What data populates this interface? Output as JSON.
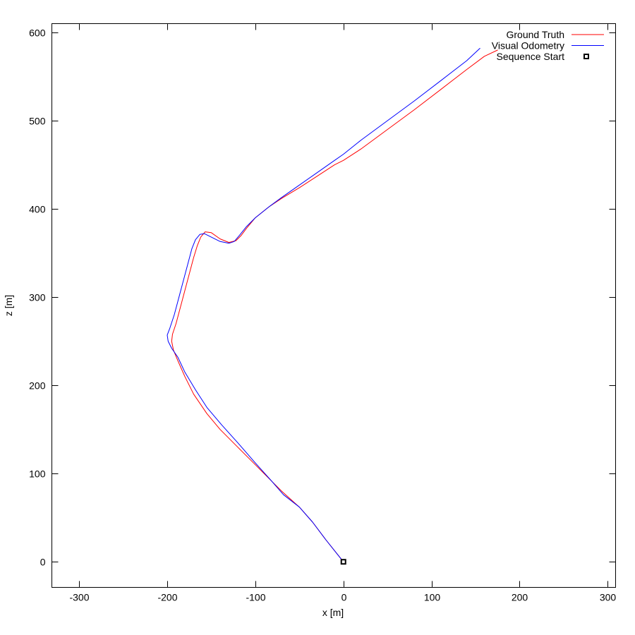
{
  "chart_data": {
    "type": "line",
    "title": "",
    "xlabel": "x [m]",
    "ylabel": "z [m]",
    "xlim": [
      -331,
      309
    ],
    "ylim": [
      -29,
      610
    ],
    "xticks": [
      -300,
      -200,
      -100,
      0,
      100,
      200,
      300
    ],
    "yticks": [
      0,
      100,
      200,
      300,
      400,
      500,
      600
    ],
    "grid": false,
    "legend": "top-right",
    "series": [
      {
        "name": "Ground Truth",
        "color": "#ff0000",
        "x": [
          0,
          -8,
          -20,
          -35,
          -50,
          -70,
          -85,
          -100,
          -120,
          -140,
          -155,
          -170,
          -180,
          -188,
          -193,
          -195,
          -194,
          -190,
          -186,
          -182,
          -178,
          -174,
          -170,
          -166,
          -162,
          -157,
          -150,
          -140,
          -130,
          -122,
          -116,
          -110,
          -100,
          -85,
          -70,
          -50,
          -30,
          -10,
          0,
          20,
          50,
          80,
          110,
          140,
          160,
          175
        ],
        "y": [
          0,
          10,
          25,
          45,
          62,
          80,
          95,
          110,
          130,
          150,
          168,
          190,
          210,
          228,
          240,
          250,
          258,
          270,
          285,
          300,
          315,
          330,
          345,
          358,
          368,
          374,
          373,
          366,
          362,
          364,
          370,
          378,
          390,
          402,
          412,
          424,
          437,
          450,
          455,
          468,
          490,
          512,
          535,
          558,
          573,
          580
        ]
      },
      {
        "name": "Visual Odometry",
        "color": "#0000ff",
        "x": [
          0,
          -8,
          -20,
          -35,
          -50,
          -68,
          -82,
          -100,
          -120,
          -138,
          -155,
          -168,
          -180,
          -188,
          -195,
          -199,
          -200,
          -197,
          -192,
          -188,
          -184,
          -180,
          -176,
          -172,
          -168,
          -163,
          -158,
          -150,
          -140,
          -130,
          -124,
          -118,
          -110,
          -100,
          -85,
          -70,
          -50,
          -30,
          -10,
          0,
          20,
          50,
          80,
          110,
          140,
          155
        ],
        "y": [
          0,
          10,
          25,
          45,
          62,
          76,
          92,
          112,
          135,
          155,
          175,
          195,
          215,
          232,
          242,
          250,
          257,
          265,
          280,
          295,
          310,
          325,
          340,
          355,
          365,
          371,
          372,
          368,
          363,
          361,
          363,
          370,
          380,
          390,
          402,
          413,
          427,
          441,
          455,
          462,
          478,
          500,
          522,
          545,
          568,
          582
        ]
      }
    ],
    "markers": [
      {
        "name": "Sequence Start",
        "x": 0,
        "y": 0,
        "symbol": "square"
      }
    ]
  }
}
